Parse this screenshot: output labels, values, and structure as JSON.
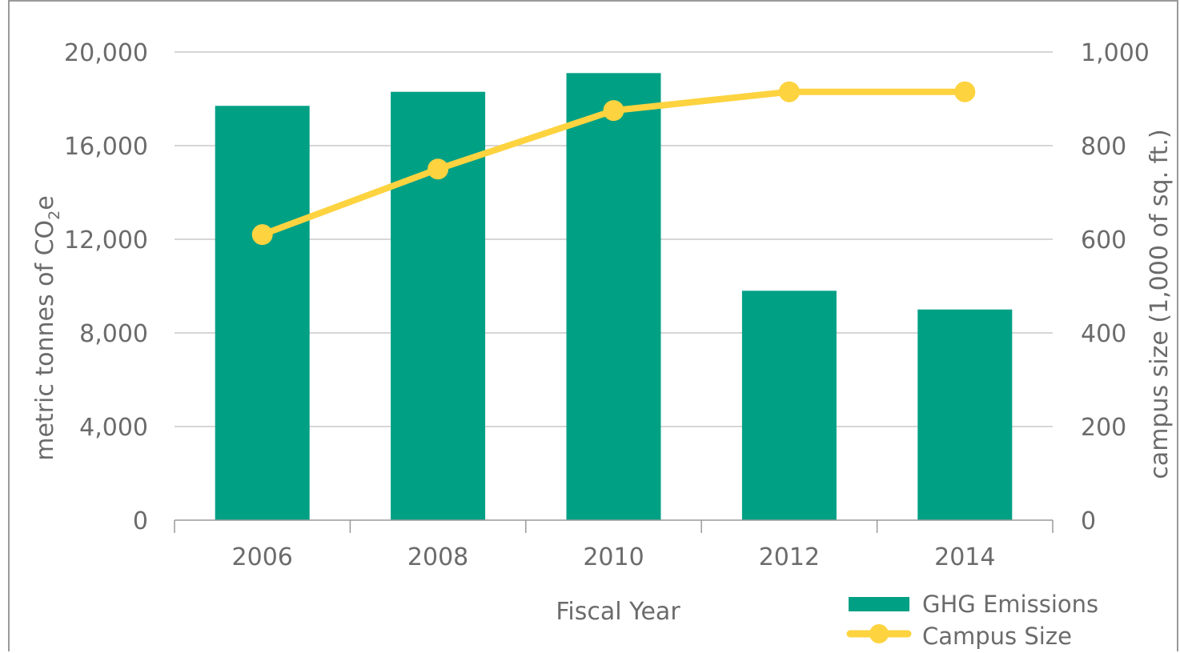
{
  "chart_data": {
    "type": "bar",
    "categories": [
      "2006",
      "2008",
      "2010",
      "2012",
      "2014"
    ],
    "series": [
      {
        "name": "GHG Emissions",
        "type": "bar",
        "axis": "left",
        "values": [
          17700,
          18300,
          19100,
          9800,
          9000
        ]
      },
      {
        "name": "Campus Size",
        "type": "line",
        "axis": "right",
        "values": [
          610,
          750,
          875,
          915,
          915
        ]
      }
    ],
    "xlabel": "Fiscal Year",
    "ylabel_left_prefix": "metric tonnes of CO",
    "ylabel_left_subscript": "2",
    "ylabel_left_suffix": "e",
    "ylabel_right": "campus size (1,000 of sq. ft.)",
    "ylim_left": [
      0,
      20000
    ],
    "ylim_right": [
      0,
      1000
    ],
    "yticks_left": [
      "0",
      "4,000",
      "8,000",
      "12,000",
      "16,000",
      "20,000"
    ],
    "yticks_left_values": [
      0,
      4000,
      8000,
      12000,
      16000,
      20000
    ],
    "yticks_right": [
      "0",
      "200",
      "400",
      "600",
      "800",
      "1,000"
    ],
    "yticks_right_values": [
      0,
      200,
      400,
      600,
      800,
      1000
    ],
    "grid": true,
    "legend": "bottom-right",
    "colors": {
      "bar": "#00a085",
      "line": "#fdd33f",
      "grid": "#c8c8c8",
      "text": "#6b6b6b",
      "axis": "#9a9a9a"
    }
  }
}
